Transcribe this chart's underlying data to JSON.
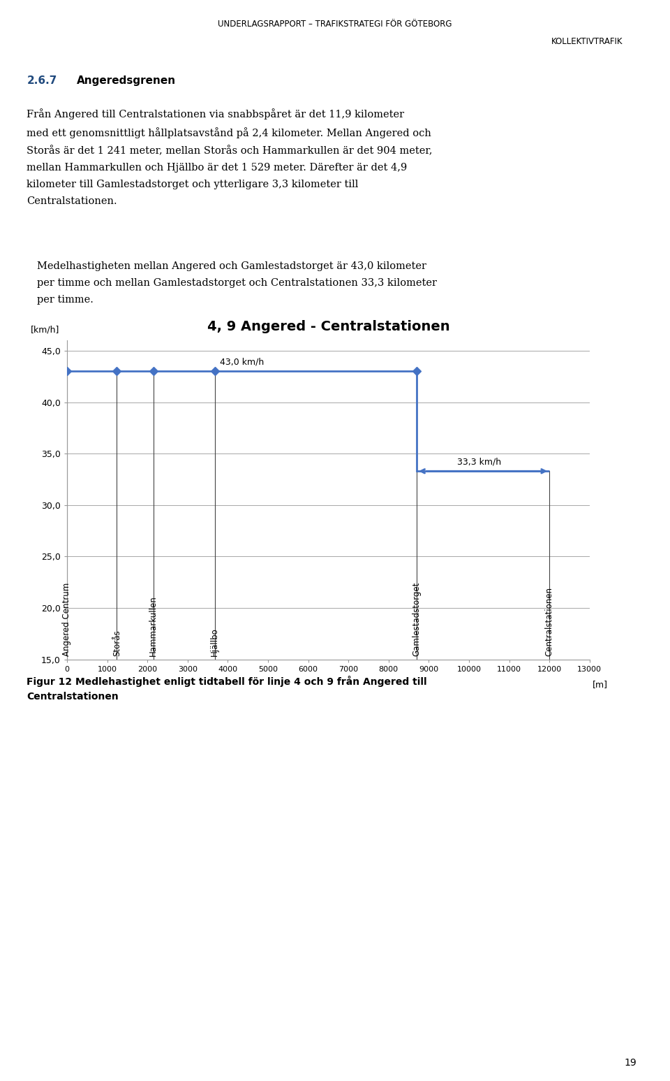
{
  "title": "4, 9 Angered - Centralstationen",
  "ylabel": "[km/h]",
  "xlabel_unit": "[m]",
  "ylim": [
    15.0,
    46.0
  ],
  "xlim": [
    0,
    13000
  ],
  "yticks": [
    15.0,
    20.0,
    25.0,
    30.0,
    35.0,
    40.0,
    45.0
  ],
  "xticks": [
    0,
    1000,
    2000,
    3000,
    4000,
    5000,
    6000,
    7000,
    8000,
    9000,
    10000,
    11000,
    12000,
    13000
  ],
  "stations": {
    "Angered Centrum": 0,
    "Storås": 1241,
    "Hammarkullen": 2145,
    "Hjällbo": 3674,
    "Gamlestadstorget": 8700,
    "Centralstationen": 12000
  },
  "segments": [
    {
      "x_start": 0,
      "x_end": 8700,
      "speed": 43.0,
      "label": "43,0 km/h"
    },
    {
      "x_start": 8700,
      "x_end": 12000,
      "speed": 33.3,
      "label": "33,3 km/h"
    }
  ],
  "line_color": "#4472C4",
  "marker_style": "D",
  "marker_size": 6,
  "header_line1": "UNDERLAGSRAPPORT – TRAFIKSTRATEGI FÖR GÖTEBORG",
  "header_line2": "KOLLEKTIVTRAFIK",
  "section_number": "2.6.7",
  "section_title": "Angeredsgrenen",
  "body_text": [
    "Från Angered till Centralstationen via snabbspåret är det 11,9 kilometer",
    "med ett genomsnittligt hållplatsavstånd på 2,4 kilometer. Mellan Angered och",
    "Storås är det 1 241 meter, mellan Storås och Hammarkullen är det 904 meter,",
    "mellan Hammarkullen och Hjällbo är det 1 529 meter. Därefter är det 4,9",
    "kilometer till Gamlestadstorget och ytterligare 3,3 kilometer till",
    "Centralstationen."
  ],
  "body_text2": [
    "Medelhastigheten mellan Angered och Gamlestadstorget är 43,0 kilometer",
    "per timme och mellan Gamlestadstorget och Centralstationen 33,3 kilometer",
    "per timme."
  ],
  "caption_line1": "Figur 12 Medlehastighet enligt tidtabell för linje 4 och 9 från Angered till",
  "caption_line2": "Centralstationen",
  "page_number": "19",
  "background_color": "#ffffff",
  "text_color": "#000000",
  "header_color": "#000000",
  "section_num_color": "#1F497D"
}
